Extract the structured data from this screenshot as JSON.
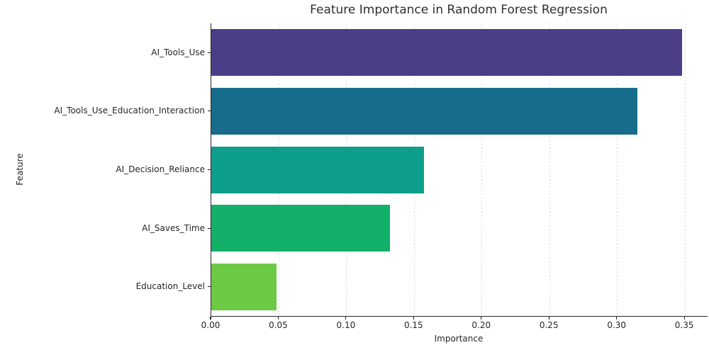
{
  "chart_data": {
    "type": "bar",
    "orientation": "horizontal",
    "title": "Feature Importance in Random Forest Regression",
    "xlabel": "Importance",
    "ylabel": "Feature",
    "categories": [
      "AI_Tools_Use",
      "AI_Tools_Use_Education_Interaction",
      "AI_Decision_Reliance",
      "AI_Saves_Time",
      "Education_Level"
    ],
    "values": [
      0.348,
      0.315,
      0.157,
      0.132,
      0.048
    ],
    "bar_colors": [
      "#4C3E86",
      "#176C8C",
      "#0D9E8C",
      "#12B069",
      "#6CC944"
    ],
    "xlim": [
      0,
      0.3667
    ],
    "xticks": [
      0.0,
      0.05,
      0.1,
      0.15,
      0.2,
      0.25,
      0.3,
      0.35
    ],
    "xtick_labels": [
      "0.00",
      "0.05",
      "0.10",
      "0.15",
      "0.20",
      "0.25",
      "0.30",
      "0.35"
    ],
    "grid": "vertical dotted gridlines",
    "legend_position": "none",
    "style": {
      "background": "#ffffff",
      "spine_color": "#262626",
      "grid_color": "#d9d9d9",
      "text_color": "#262626",
      "title_color": "#2f2f2f"
    }
  }
}
